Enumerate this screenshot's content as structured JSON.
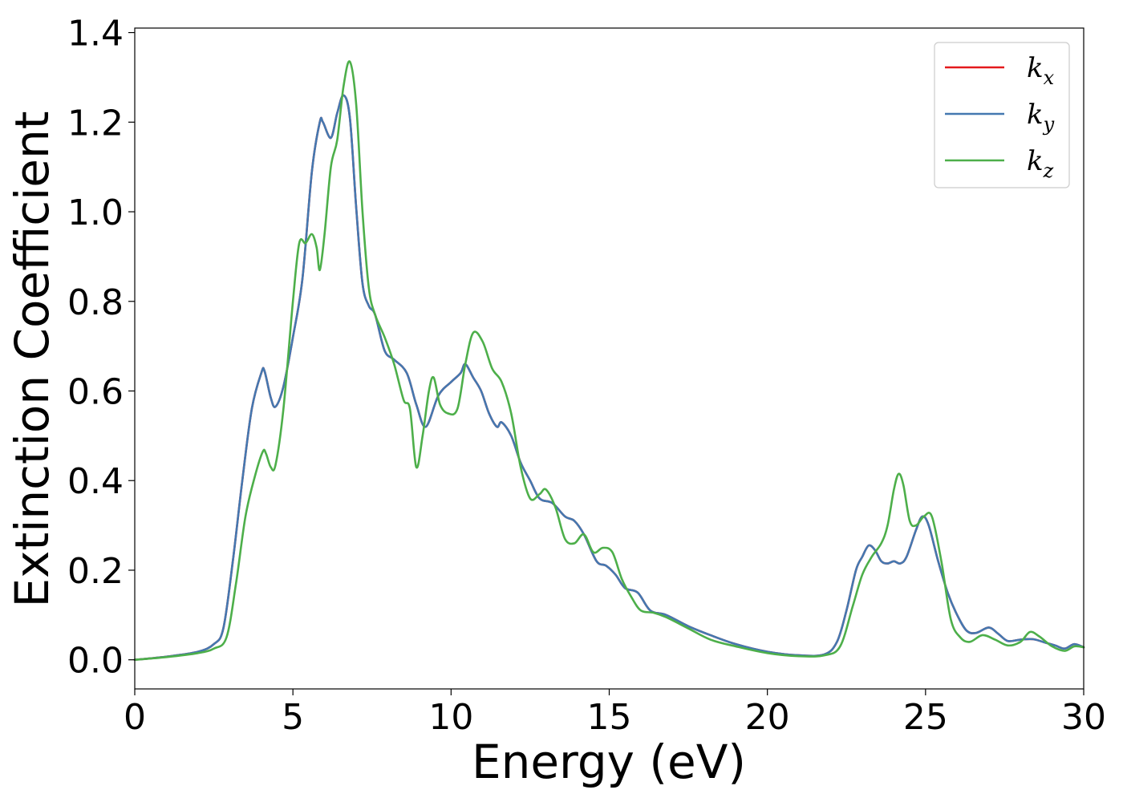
{
  "chart_data": {
    "type": "line",
    "xlabel": "Energy (eV)",
    "ylabel": "Extinction Coefficient",
    "xlim": [
      0,
      30
    ],
    "ylim": [
      -0.065,
      1.41
    ],
    "xticks": [
      0,
      5,
      10,
      15,
      20,
      25,
      30
    ],
    "xtick_labels": [
      "0",
      "5",
      "10",
      "15",
      "20",
      "25",
      "30"
    ],
    "yticks": [
      0.0,
      0.2,
      0.4,
      0.6,
      0.8,
      1.0,
      1.2,
      1.4
    ],
    "ytick_labels": [
      "0.0",
      "0.2",
      "0.4",
      "0.6",
      "0.8",
      "1.0",
      "1.2",
      "1.4"
    ],
    "grid": false,
    "legend_position": "top-right",
    "series": [
      {
        "name": "k_x",
        "legend_base": "k",
        "legend_sub": "x",
        "color": "#e41a1c",
        "x": [
          0,
          1,
          2,
          2.5,
          2.8,
          3.1,
          3.4,
          3.7,
          4.0,
          4.1,
          4.3,
          4.45,
          4.7,
          5.0,
          5.3,
          5.6,
          5.85,
          5.95,
          6.2,
          6.4,
          6.6,
          6.8,
          7.0,
          7.2,
          7.4,
          7.6,
          7.9,
          8.2,
          8.6,
          8.9,
          9.2,
          9.6,
          10.0,
          10.3,
          10.45,
          10.7,
          10.95,
          11.2,
          11.45,
          11.6,
          11.9,
          12.2,
          12.5,
          12.8,
          13.2,
          13.6,
          13.9,
          14.2,
          14.6,
          14.9,
          15.2,
          15.5,
          15.9,
          16.3,
          16.8,
          17.5,
          18.2,
          19.0,
          20.0,
          21.0,
          21.8,
          22.2,
          22.5,
          22.8,
          23.0,
          23.2,
          23.4,
          23.6,
          23.8,
          24.0,
          24.2,
          24.4,
          24.7,
          24.9,
          25.1,
          25.4,
          25.7,
          26.0,
          26.3,
          26.6,
          27.0,
          27.3,
          27.6,
          28.0,
          28.4,
          28.8,
          29.1,
          29.4,
          29.7,
          30.0
        ],
        "y": [
          0.0,
          0.007,
          0.018,
          0.035,
          0.07,
          0.22,
          0.4,
          0.56,
          0.64,
          0.645,
          0.585,
          0.565,
          0.61,
          0.72,
          0.85,
          1.09,
          1.2,
          1.2,
          1.165,
          1.22,
          1.26,
          1.21,
          1.01,
          0.84,
          0.79,
          0.77,
          0.69,
          0.67,
          0.64,
          0.57,
          0.52,
          0.59,
          0.62,
          0.64,
          0.66,
          0.63,
          0.6,
          0.55,
          0.52,
          0.53,
          0.5,
          0.44,
          0.4,
          0.36,
          0.35,
          0.32,
          0.31,
          0.28,
          0.22,
          0.21,
          0.19,
          0.16,
          0.15,
          0.11,
          0.1,
          0.075,
          0.055,
          0.035,
          0.018,
          0.01,
          0.012,
          0.04,
          0.11,
          0.2,
          0.23,
          0.255,
          0.245,
          0.22,
          0.215,
          0.22,
          0.215,
          0.23,
          0.29,
          0.32,
          0.3,
          0.22,
          0.15,
          0.1,
          0.065,
          0.06,
          0.072,
          0.058,
          0.042,
          0.045,
          0.046,
          0.038,
          0.032,
          0.025,
          0.035,
          0.028
        ]
      },
      {
        "name": "k_y",
        "legend_base": "k",
        "legend_sub": "y",
        "color": "#4478b0",
        "x": [
          0,
          1,
          2,
          2.5,
          2.8,
          3.1,
          3.4,
          3.7,
          4.0,
          4.1,
          4.3,
          4.45,
          4.7,
          5.0,
          5.3,
          5.6,
          5.85,
          5.95,
          6.2,
          6.4,
          6.6,
          6.8,
          7.0,
          7.2,
          7.4,
          7.6,
          7.9,
          8.2,
          8.6,
          8.9,
          9.2,
          9.6,
          10.0,
          10.3,
          10.45,
          10.7,
          10.95,
          11.2,
          11.45,
          11.6,
          11.9,
          12.2,
          12.5,
          12.8,
          13.2,
          13.6,
          13.9,
          14.2,
          14.6,
          14.9,
          15.2,
          15.5,
          15.9,
          16.3,
          16.8,
          17.5,
          18.2,
          19.0,
          20.0,
          21.0,
          21.8,
          22.2,
          22.5,
          22.8,
          23.0,
          23.2,
          23.4,
          23.6,
          23.8,
          24.0,
          24.2,
          24.4,
          24.7,
          24.9,
          25.1,
          25.4,
          25.7,
          26.0,
          26.3,
          26.6,
          27.0,
          27.3,
          27.6,
          28.0,
          28.4,
          28.8,
          29.1,
          29.4,
          29.7,
          30.0
        ],
        "y": [
          0.0,
          0.007,
          0.018,
          0.035,
          0.07,
          0.22,
          0.4,
          0.56,
          0.64,
          0.645,
          0.585,
          0.565,
          0.61,
          0.72,
          0.85,
          1.09,
          1.2,
          1.2,
          1.165,
          1.22,
          1.26,
          1.21,
          1.01,
          0.84,
          0.79,
          0.77,
          0.69,
          0.67,
          0.64,
          0.57,
          0.52,
          0.59,
          0.62,
          0.64,
          0.66,
          0.63,
          0.6,
          0.55,
          0.52,
          0.53,
          0.5,
          0.44,
          0.4,
          0.36,
          0.35,
          0.32,
          0.31,
          0.28,
          0.22,
          0.21,
          0.19,
          0.16,
          0.15,
          0.11,
          0.1,
          0.075,
          0.055,
          0.035,
          0.018,
          0.01,
          0.012,
          0.04,
          0.11,
          0.2,
          0.23,
          0.255,
          0.245,
          0.22,
          0.215,
          0.22,
          0.215,
          0.23,
          0.29,
          0.32,
          0.3,
          0.22,
          0.15,
          0.1,
          0.065,
          0.06,
          0.072,
          0.058,
          0.042,
          0.045,
          0.046,
          0.038,
          0.032,
          0.025,
          0.035,
          0.028
        ]
      },
      {
        "name": "k_z",
        "legend_base": "k",
        "legend_sub": "z",
        "color": "#4daf4a",
        "x": [
          0,
          1,
          2,
          2.5,
          2.9,
          3.2,
          3.5,
          3.8,
          4.05,
          4.15,
          4.3,
          4.45,
          4.7,
          5.0,
          5.2,
          5.4,
          5.6,
          5.75,
          5.85,
          6.0,
          6.2,
          6.4,
          6.6,
          6.8,
          7.0,
          7.2,
          7.4,
          7.6,
          7.9,
          8.2,
          8.5,
          8.7,
          8.9,
          9.1,
          9.3,
          9.45,
          9.65,
          9.9,
          10.2,
          10.45,
          10.7,
          11.0,
          11.3,
          11.6,
          11.9,
          12.2,
          12.5,
          12.8,
          13.0,
          13.3,
          13.6,
          13.9,
          14.2,
          14.5,
          14.8,
          15.1,
          15.4,
          15.7,
          16.0,
          16.4,
          16.8,
          17.5,
          18.2,
          19.0,
          20.0,
          21.0,
          21.8,
          22.3,
          22.7,
          23.0,
          23.3,
          23.6,
          23.8,
          24.0,
          24.15,
          24.3,
          24.5,
          24.7,
          24.95,
          25.2,
          25.5,
          25.8,
          26.1,
          26.4,
          26.8,
          27.2,
          27.6,
          28.0,
          28.3,
          28.6,
          29.0,
          29.4,
          29.7,
          30.0
        ],
        "y": [
          0.0,
          0.006,
          0.015,
          0.025,
          0.05,
          0.17,
          0.32,
          0.41,
          0.465,
          0.46,
          0.43,
          0.435,
          0.56,
          0.8,
          0.93,
          0.93,
          0.95,
          0.92,
          0.87,
          0.95,
          1.1,
          1.16,
          1.28,
          1.335,
          1.24,
          1.0,
          0.83,
          0.77,
          0.72,
          0.66,
          0.58,
          0.56,
          0.43,
          0.5,
          0.6,
          0.63,
          0.57,
          0.55,
          0.56,
          0.66,
          0.73,
          0.71,
          0.65,
          0.62,
          0.55,
          0.43,
          0.36,
          0.37,
          0.38,
          0.34,
          0.27,
          0.26,
          0.28,
          0.24,
          0.25,
          0.24,
          0.18,
          0.14,
          0.11,
          0.105,
          0.095,
          0.07,
          0.045,
          0.03,
          0.015,
          0.008,
          0.01,
          0.03,
          0.12,
          0.19,
          0.23,
          0.26,
          0.3,
          0.38,
          0.415,
          0.39,
          0.31,
          0.3,
          0.32,
          0.32,
          0.22,
          0.09,
          0.05,
          0.04,
          0.055,
          0.045,
          0.032,
          0.04,
          0.062,
          0.052,
          0.03,
          0.02,
          0.03,
          0.028
        ]
      }
    ]
  }
}
